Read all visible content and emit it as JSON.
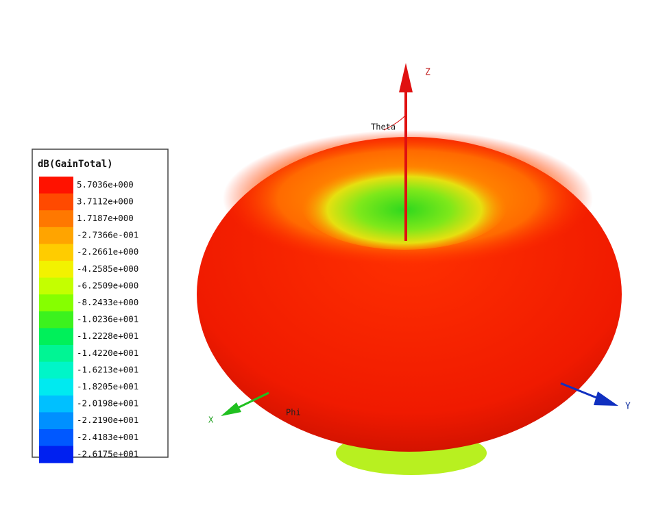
{
  "legend": {
    "title": "dB(GainTotal)",
    "entries": [
      {
        "label": "5.7036e+000",
        "color": "#ff1200"
      },
      {
        "label": "3.7112e+000",
        "color": "#ff4a00"
      },
      {
        "label": "1.7187e+000",
        "color": "#ff7800"
      },
      {
        "label": "-2.7366e-001",
        "color": "#ffa400"
      },
      {
        "label": "-2.2661e+000",
        "color": "#ffcc00"
      },
      {
        "label": "-4.2585e+000",
        "color": "#f2f200"
      },
      {
        "label": "-6.2509e+000",
        "color": "#c4ff00"
      },
      {
        "label": "-8.2433e+000",
        "color": "#86ff00"
      },
      {
        "label": "-1.0236e+001",
        "color": "#3cf21e"
      },
      {
        "label": "-1.2228e+001",
        "color": "#00f05a"
      },
      {
        "label": "-1.4220e+001",
        "color": "#00f594"
      },
      {
        "label": "-1.6213e+001",
        "color": "#00f5c8"
      },
      {
        "label": "-1.8205e+001",
        "color": "#00eaf0"
      },
      {
        "label": "-2.0198e+001",
        "color": "#00c0ff"
      },
      {
        "label": "-2.2190e+001",
        "color": "#0090ff"
      },
      {
        "label": "-2.4183e+001",
        "color": "#0058ff"
      },
      {
        "label": "-2.6175e+001",
        "color": "#0020f0"
      }
    ]
  },
  "axes": {
    "z": "Z",
    "theta": "Theta",
    "x": "X",
    "phi": "Phi",
    "y": "Y"
  }
}
